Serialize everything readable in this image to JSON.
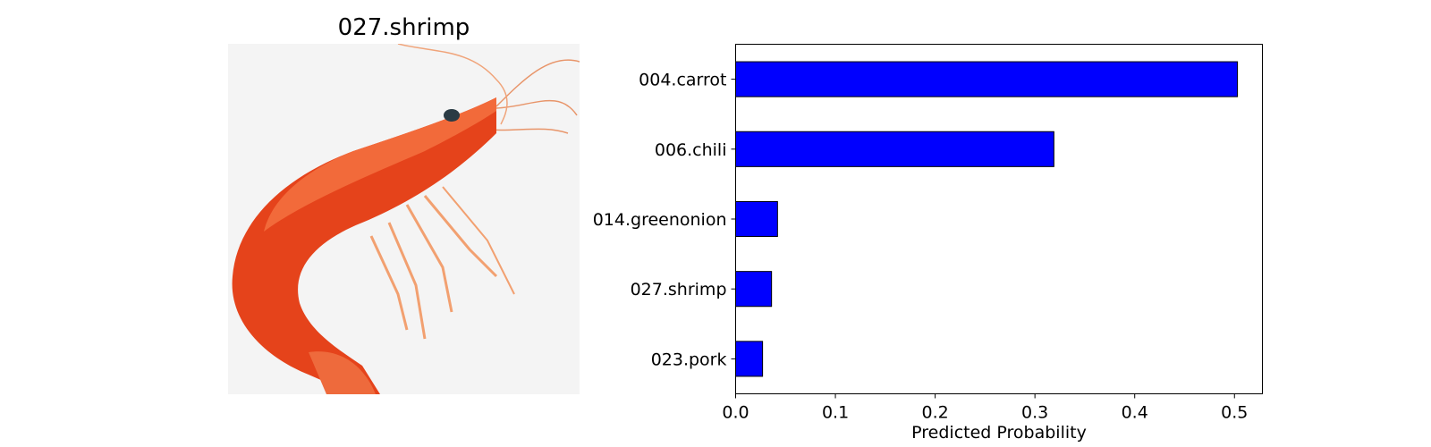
{
  "image_panel": {
    "title": "027.shrimp",
    "picture": "shrimp-photo"
  },
  "chart_data": {
    "type": "bar",
    "orientation": "horizontal",
    "categories": [
      "004.carrot",
      "006.chili",
      "014.greenonion",
      "027.shrimp",
      "023.pork"
    ],
    "values": [
      0.503,
      0.319,
      0.042,
      0.036,
      0.027
    ],
    "xlabel": "Predicted Probability",
    "ylabel": "",
    "xlim": [
      0.0,
      0.528
    ],
    "xticks": [
      0.0,
      0.1,
      0.2,
      0.3,
      0.4,
      0.5
    ],
    "xtick_labels": [
      "0.0",
      "0.1",
      "0.2",
      "0.3",
      "0.4",
      "0.5"
    ],
    "grid": false,
    "bar_color": "#0000ff",
    "bar_edge_color": "#000000"
  }
}
